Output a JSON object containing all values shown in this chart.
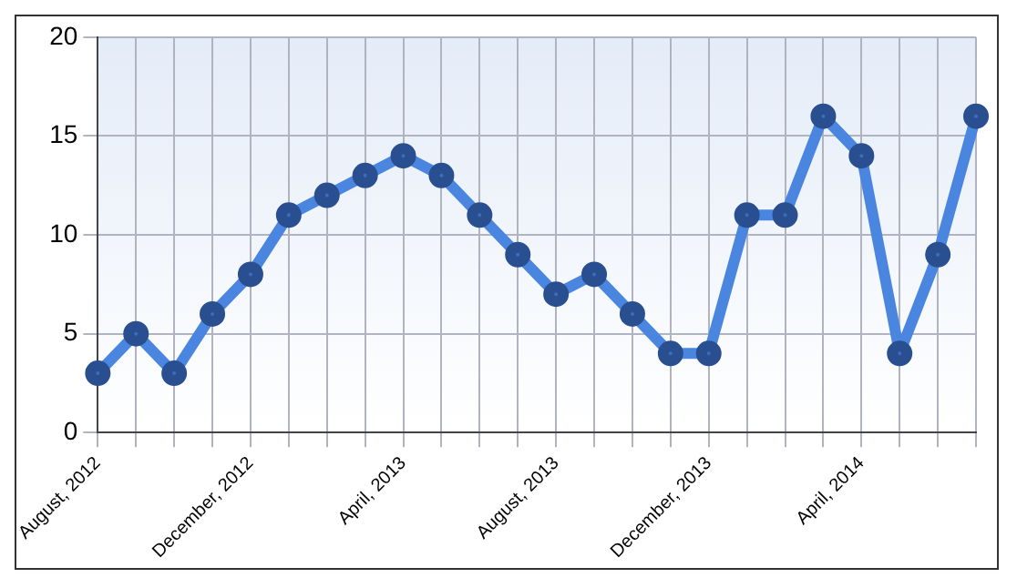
{
  "chart_data": {
    "type": "line",
    "categories": [
      "August, 2012",
      null,
      null,
      null,
      "December, 2012",
      null,
      null,
      null,
      "April, 2013",
      null,
      null,
      null,
      "August, 2013",
      null,
      null,
      null,
      "December, 2013",
      null,
      null,
      null,
      "April, 2014",
      null,
      null,
      null
    ],
    "series": [
      {
        "color": "#4a86e0",
        "values": [
          3,
          5,
          3,
          6,
          8,
          11,
          12,
          13,
          14,
          13,
          11,
          9,
          7,
          8,
          6,
          4,
          4,
          11,
          11,
          16,
          14,
          4,
          9,
          16
        ]
      }
    ],
    "ylim": [
      0,
      20
    ],
    "yticks": [
      0,
      5,
      10,
      15,
      20
    ],
    "grid": true,
    "legend": false,
    "marker": "circle",
    "line_style": "solid"
  }
}
